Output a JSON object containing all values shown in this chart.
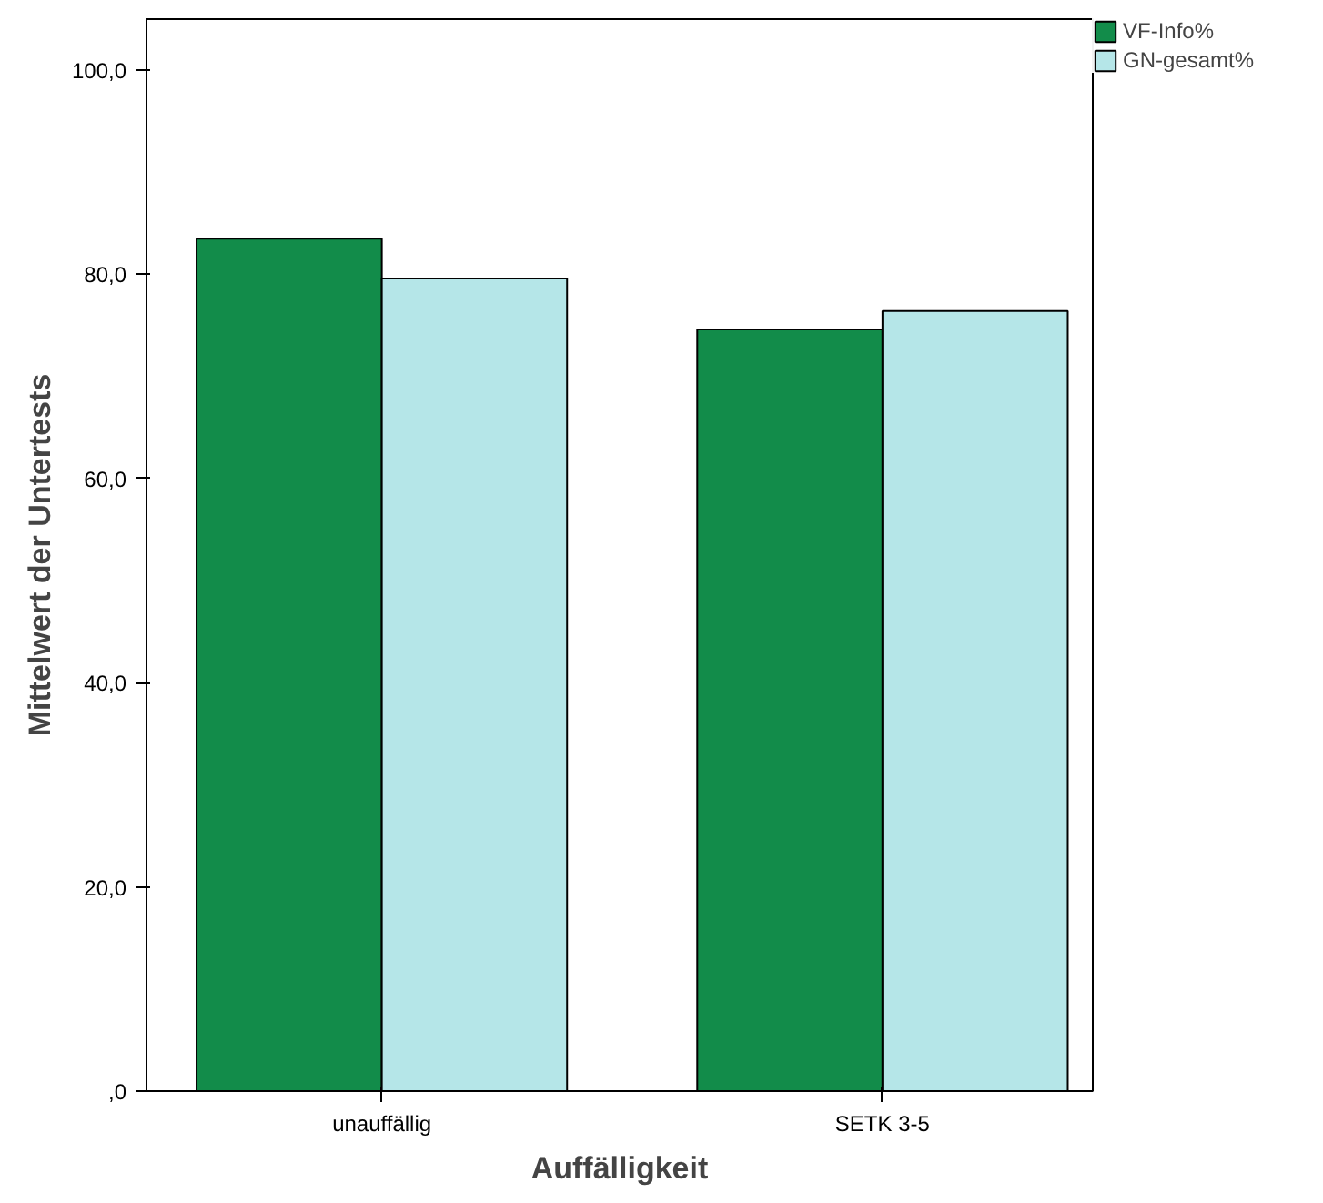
{
  "chart_data": {
    "type": "bar",
    "xlabel": "Auffälligkeit",
    "ylabel": "Mittelwert der Untertests",
    "categories": [
      "unauffällig",
      "SETK 3-5"
    ],
    "series": [
      {
        "name": "VF-Info%",
        "color": "#128c4a",
        "values": [
          83.5,
          74.6
        ]
      },
      {
        "name": "GN-gesamt%",
        "color": "#b5e6e8",
        "values": [
          79.6,
          76.4
        ]
      }
    ],
    "ylim": [
      0,
      105
    ],
    "yticks": [
      {
        "value": 0,
        "label": ",0"
      },
      {
        "value": 20,
        "label": "20,0"
      },
      {
        "value": 40,
        "label": "40,0"
      },
      {
        "value": 60,
        "label": "60,0"
      },
      {
        "value": 80,
        "label": "80,0"
      },
      {
        "value": 100,
        "label": "100,0"
      }
    ],
    "grid": false,
    "legend": "top right"
  }
}
